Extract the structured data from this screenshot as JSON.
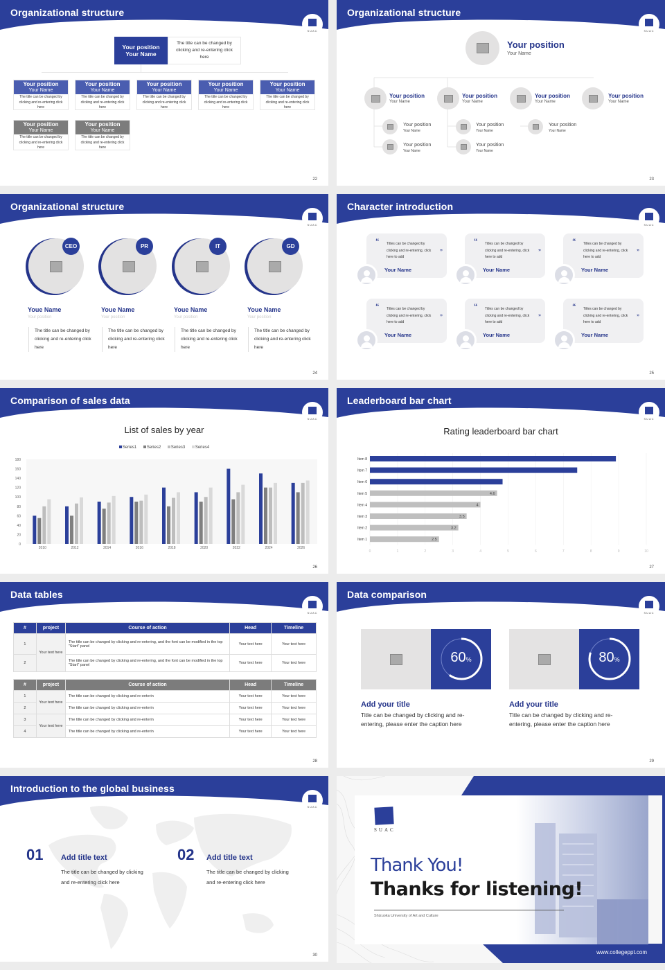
{
  "brand": {
    "logo_text": "SUAC",
    "primary": "#2b3f9a",
    "dark_blue": "#24348a",
    "gray_box": "#7c7c7c"
  },
  "slides": {
    "s22": {
      "title": "Organizational structure",
      "page": "22",
      "top": {
        "position": "Your position",
        "name": "Your Name",
        "desc": "The title can be changed by clicking and re-entering click here"
      },
      "row1": [
        {
          "position": "Your position",
          "name": "Your Name",
          "desc": "The title can be changed by clicking and re-entering click here"
        },
        {
          "position": "Your position",
          "name": "Your Name",
          "desc": "The title can be changed by clicking and re-entering click here"
        },
        {
          "position": "Your position",
          "name": "Your Name",
          "desc": "The title can be changed by clicking and re-entering click here"
        },
        {
          "position": "Your position",
          "name": "Your Name",
          "desc": "The title can be changed by clicking and re-entering click here"
        },
        {
          "position": "Your position",
          "name": "Your Name",
          "desc": "The title can be changed by clicking and re-entering click here"
        }
      ],
      "row2": [
        {
          "position": "Your position",
          "name": "Your Name",
          "desc": "The title can be changed by clicking and re-entering click here"
        },
        {
          "position": "Your position",
          "name": "Your Name",
          "desc": "The title can be changed by clicking and re-entering click here"
        }
      ]
    },
    "s23": {
      "title": "Organizational structure",
      "page": "23",
      "top": {
        "position": "Your position",
        "name": "Your Name"
      },
      "level1": [
        {
          "position": "Your position",
          "name": "Your Name"
        },
        {
          "position": "Your position",
          "name": "Your Name"
        },
        {
          "position": "Your position",
          "name": "Your Name"
        },
        {
          "position": "Your position",
          "name": "Your Name"
        }
      ],
      "level2": [
        {
          "position": "Your position",
          "name": "Your Name"
        },
        {
          "position": "Your position",
          "name": "Your Name"
        },
        {
          "position": "Your position",
          "name": "Your Name"
        },
        {
          "position": "Your position",
          "name": "Your Name"
        },
        {
          "position": "Your position",
          "name": "Your Name"
        }
      ]
    },
    "s24": {
      "title": "Organizational structure",
      "page": "24",
      "people": [
        {
          "badge": "CEO",
          "name": "Youe Name",
          "position": "Your position",
          "desc": "The title can be changed by clicking and re-entering click here"
        },
        {
          "badge": "PR",
          "name": "Youe Name",
          "position": "Your position",
          "desc": "The title can be changed by clicking and re-entering click here"
        },
        {
          "badge": "IT",
          "name": "Youe Name",
          "position": "Your position",
          "desc": "The title can be changed by clicking and re-entering click here"
        },
        {
          "badge": "GD",
          "name": "Youe Name",
          "position": "Your position",
          "desc": "The title can be changed by clicking and re-entering click here"
        }
      ]
    },
    "s25": {
      "title": "Character introduction",
      "page": "25",
      "quotes": [
        {
          "text": "Titles can be changed by clicking and re-entering, click here to add",
          "name": "Your Name"
        },
        {
          "text": "Titles can be changed by clicking and re-entering, click here to add",
          "name": "Your Name"
        },
        {
          "text": "Titles can be changed by clicking and re-entering, click here to add",
          "name": "Your Name"
        },
        {
          "text": "Titles can be changed by clicking and re-entering, click here to add",
          "name": "Your Name"
        },
        {
          "text": "Titles can be changed by clicking and re-entering, click here to add",
          "name": "Your Name"
        },
        {
          "text": "Titles can be changed by clicking and re-entering, click here to add",
          "name": "Your Name"
        }
      ],
      "open_quote": "“",
      "close_quote": "”"
    },
    "s26": {
      "title": "Comparison of sales data",
      "page": "26"
    },
    "s27": {
      "title": "Leaderboard bar chart",
      "page": "27"
    },
    "s28": {
      "title": "Data tables",
      "page": "28",
      "headers": [
        "#",
        "project",
        "Course of action",
        "Head",
        "Timeline"
      ],
      "table1": {
        "project": "Your text here",
        "rows": [
          {
            "num": "1",
            "action": "The title can be changed by clicking and re-entering, and the font can be modified in the top \"Start\" panel",
            "head": "Your text here",
            "timeline": "Your text here"
          },
          {
            "num": "2",
            "action": "The title can be changed by clicking and re-entering, and the font can be modified in the top \"Start\" panel",
            "head": "Your text here",
            "timeline": "Your text here"
          }
        ]
      },
      "table2": {
        "projects": [
          "Your text here",
          "Your text here"
        ],
        "rows": [
          {
            "num": "1",
            "action": "The title can be changed by clicking and re-enterin",
            "head": "Your text here",
            "timeline": "Your text here"
          },
          {
            "num": "2",
            "action": "The title can be changed by clicking and re-enterin",
            "head": "Your text here",
            "timeline": "Your text here"
          },
          {
            "num": "3",
            "action": "The title can be changed by clicking and re-enterin",
            "head": "Your text here",
            "timeline": "Your text here"
          },
          {
            "num": "4",
            "action": "The title can be changed by clicking and re-enterin",
            "head": "Your text here",
            "timeline": "Your text here"
          }
        ]
      }
    },
    "s29": {
      "title": "Data comparison",
      "page": "29",
      "cards": [
        {
          "percent": "60",
          "unit": "%",
          "value": 60,
          "heading": "Add your title",
          "desc": "Title can be changed by clicking and re-entering, please enter the caption here"
        },
        {
          "percent": "80",
          "unit": "%",
          "value": 80,
          "heading": "Add your title",
          "desc": "Title can be changed by clicking and re-entering, please enter the caption here"
        }
      ]
    },
    "s30": {
      "title": "Introduction to the global business",
      "page": "30",
      "items": [
        {
          "num": "01",
          "heading": "Add title text",
          "desc": "The title can be changed by clicking and re-entering click here"
        },
        {
          "num": "02",
          "heading": "Add title text",
          "desc": "The title can be changed by clicking and re-entering click here"
        }
      ]
    },
    "s31": {
      "logo_text": "SUAC",
      "thank_you": "Thank You!",
      "thanks": "Thanks for listening!",
      "university": "Shizuoka University of Art and Culture",
      "website": "www.collegeppt.com"
    }
  },
  "chart_data": [
    {
      "type": "bar",
      "title": "List of sales by year",
      "categories": [
        "2010",
        "2012",
        "2014",
        "2016",
        "2018",
        "2020",
        "2022",
        "2024",
        "2026"
      ],
      "series": [
        {
          "name": "Series1",
          "color": "#2b3f9a",
          "values": [
            60,
            80,
            90,
            100,
            120,
            110,
            160,
            150,
            130
          ]
        },
        {
          "name": "Series2",
          "color": "#7f7f7f",
          "values": [
            55,
            60,
            75,
            90,
            80,
            90,
            95,
            120,
            110
          ]
        },
        {
          "name": "Series3",
          "color": "#bdbdbd",
          "values": [
            80,
            86,
            88,
            92,
            98,
            100,
            110,
            120,
            130
          ]
        },
        {
          "name": "Series4",
          "color": "#d9d9d9",
          "values": [
            95,
            99,
            102,
            105,
            110,
            120,
            126,
            130,
            135
          ]
        }
      ],
      "yticks": [
        0,
        20,
        40,
        60,
        80,
        100,
        120,
        140,
        160,
        180
      ],
      "ylim": [
        0,
        180
      ],
      "legend_position": "top",
      "grid": false
    },
    {
      "type": "bar",
      "orientation": "horizontal",
      "title": "Rating leaderboard bar chart",
      "categories": [
        "Item 8",
        "Item 7",
        "Item 6",
        "Item 5",
        "Item 4",
        "Item 3",
        "Item 2",
        "Item 1"
      ],
      "values": [
        8.9,
        7.5,
        4.8,
        4.6,
        4,
        3.5,
        3.2,
        2.5
      ],
      "labels": [
        "",
        "",
        "",
        "4.6",
        "4",
        "3.5",
        "3.2",
        "2.5"
      ],
      "colors": [
        "#2b3f9a",
        "#2b3f9a",
        "#2b3f9a",
        "#bfbfbf",
        "#bfbfbf",
        "#bfbfbf",
        "#bfbfbf",
        "#bfbfbf"
      ],
      "xticks": [
        0,
        1,
        2,
        3,
        4,
        5,
        6,
        7,
        8,
        9,
        10
      ],
      "xlim": [
        0,
        10
      ],
      "grid": true
    }
  ]
}
